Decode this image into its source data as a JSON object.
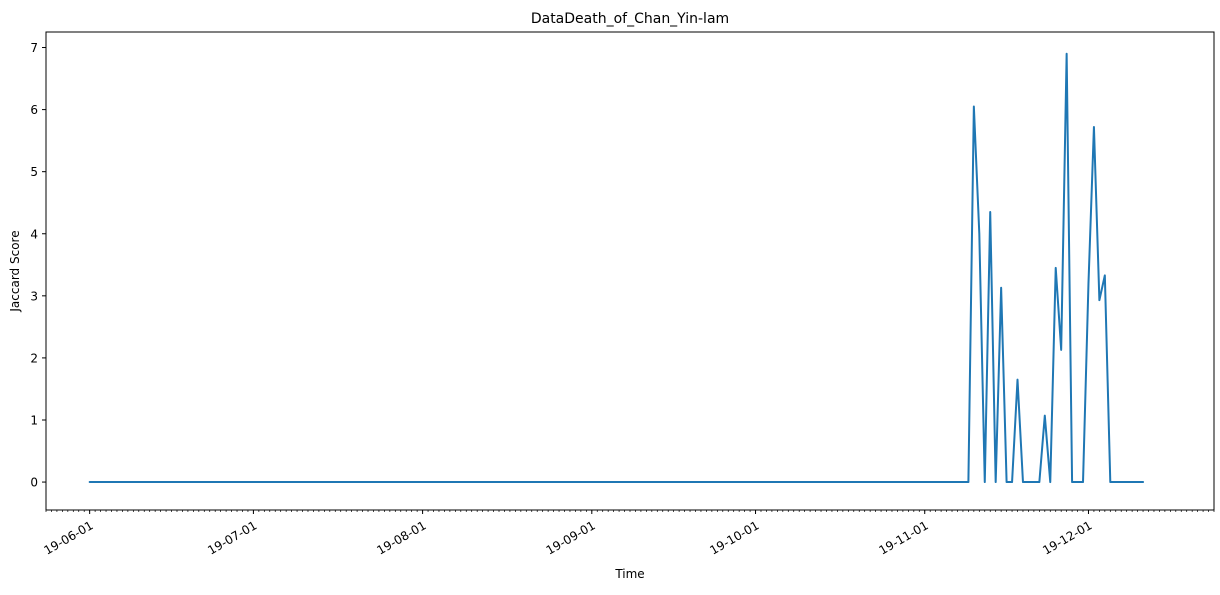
{
  "chart_data": {
    "type": "line",
    "title": "DataDeath_of_Chan_Yin-lam",
    "xlabel": "Time",
    "ylabel": "Jaccard Score",
    "x_type": "date",
    "xlim": [
      "2019-05-24",
      "2019-12-24"
    ],
    "ylim": [
      -0.45,
      7.25
    ],
    "x_ticks": [
      {
        "date": "2019-06-01",
        "label": "19-06-01"
      },
      {
        "date": "2019-07-01",
        "label": "19-07-01"
      },
      {
        "date": "2019-08-01",
        "label": "19-08-01"
      },
      {
        "date": "2019-09-01",
        "label": "19-09-01"
      },
      {
        "date": "2019-10-01",
        "label": "19-10-01"
      },
      {
        "date": "2019-11-01",
        "label": "19-11-01"
      },
      {
        "date": "2019-12-01",
        "label": "19-12-01"
      }
    ],
    "y_ticks": [
      0,
      1,
      2,
      3,
      4,
      5,
      6,
      7
    ],
    "grid": false,
    "color": "#1f77b4",
    "series": [
      {
        "x": [
          "2019-06-01",
          "2019-11-09",
          "2019-11-10",
          "2019-11-11",
          "2019-11-12",
          "2019-11-13",
          "2019-11-14",
          "2019-11-15",
          "2019-11-16",
          "2019-11-17",
          "2019-11-18",
          "2019-11-19",
          "2019-11-20",
          "2019-11-21",
          "2019-11-22",
          "2019-11-23",
          "2019-11-24",
          "2019-11-25",
          "2019-11-26",
          "2019-11-27",
          "2019-11-28",
          "2019-11-29",
          "2019-11-30",
          "2019-12-01",
          "2019-12-02",
          "2019-12-03",
          "2019-12-04",
          "2019-12-05",
          "2019-12-06",
          "2019-12-07",
          "2019-12-08",
          "2019-12-09",
          "2019-12-10",
          "2019-12-11"
        ],
        "y": [
          0,
          0,
          6.05,
          4.0,
          0,
          4.35,
          0,
          3.13,
          0,
          0,
          1.65,
          0,
          0,
          0,
          0,
          1.07,
          0,
          3.45,
          2.13,
          6.9,
          0,
          0,
          0,
          3.2,
          5.72,
          2.93,
          3.33,
          0,
          0,
          0,
          0,
          0,
          0,
          0
        ]
      }
    ]
  }
}
